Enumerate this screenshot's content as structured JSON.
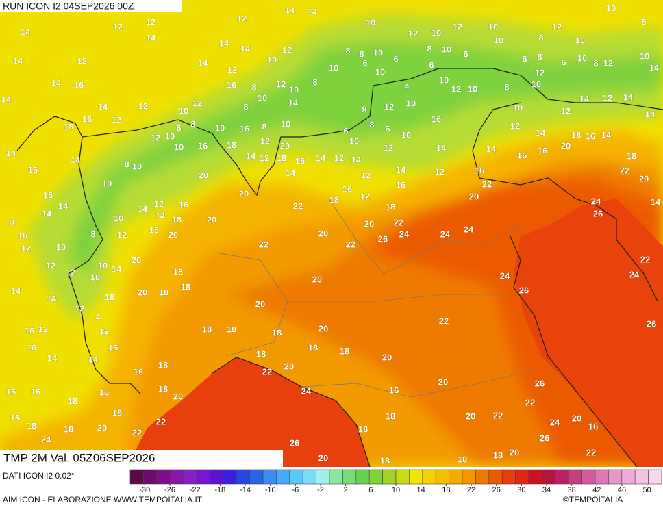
{
  "header": {
    "run": "RUN ICON I2 04SEP2026 00Z",
    "valid": "TMP 2M Val. 05Z06SEP2026"
  },
  "footer": {
    "source": "DATI ICON I2 0.02°",
    "credit": "AIM ICON - ELABORAZIONE WWW.TEMPOITALIA.IT",
    "copyright": "©TEMPOITALIA"
  },
  "colorbar": {
    "colors": [
      "#5a0a4a",
      "#6e0a6e",
      "#820a8c",
      "#8c14aa",
      "#8c1ec8",
      "#7814d2",
      "#5a14d2",
      "#3c1edc",
      "#2846e6",
      "#2864e6",
      "#3c8cf0",
      "#46aaf5",
      "#5ac8f5",
      "#78dcf5",
      "#a0f0f0",
      "#8ce6a0",
      "#78dc78",
      "#64d250",
      "#82d232",
      "#a0d228",
      "#c8dc14",
      "#f0e600",
      "#f5d200",
      "#f5be00",
      "#f5aa00",
      "#f59600",
      "#f07800",
      "#ec5a00",
      "#e83c0a",
      "#dc2814",
      "#c8141e",
      "#b4143c",
      "#be1e64",
      "#c83c82",
      "#d25aa0",
      "#dc78b4",
      "#e696c8",
      "#f0aad7",
      "#f5c3e6",
      "#f8d7f0"
    ],
    "ticks": [
      -30,
      -26,
      -22,
      -18,
      -14,
      -10,
      -6,
      -2,
      2,
      6,
      10,
      14,
      18,
      22,
      26,
      30,
      34,
      38,
      42,
      46,
      50
    ]
  },
  "labels": [
    14,
    14,
    10,
    10,
    8,
    12,
    12,
    14,
    12,
    14,
    12,
    10,
    12,
    10,
    12,
    8,
    10,
    14,
    14,
    12,
    8,
    8,
    10,
    6,
    8,
    10,
    6,
    10,
    14,
    12,
    14,
    12,
    10,
    10,
    6,
    6,
    6,
    8,
    6,
    10,
    8,
    12,
    10,
    12,
    14,
    14,
    16,
    16,
    8,
    12,
    10,
    8,
    10,
    4,
    10,
    12,
    10,
    8,
    10,
    14,
    14,
    12,
    10,
    12,
    8,
    10,
    14,
    8,
    12,
    10,
    10,
    12,
    14,
    12,
    14,
    14,
    12,
    16,
    18,
    6,
    8,
    10,
    16,
    8,
    10,
    6,
    8,
    6,
    16,
    12,
    14,
    18,
    16,
    14,
    10,
    12,
    10,
    10,
    16,
    18,
    12,
    20,
    12,
    10,
    14,
    14,
    16,
    20,
    18,
    14,
    14,
    8,
    10,
    14,
    12,
    18,
    16,
    14,
    12,
    14,
    12,
    14,
    12,
    16,
    16,
    20,
    16,
    22,
    20,
    14,
    16,
    16,
    22,
    10,
    16,
    20,
    18,
    12,
    20,
    24,
    14,
    14,
    12,
    16,
    22,
    18,
    26,
    18,
    14,
    10,
    14,
    14,
    18,
    20,
    16,
    22,
    24,
    20,
    16,
    8,
    12,
    20,
    20,
    24,
    24,
    26,
    12,
    10,
    22,
    22,
    10,
    14,
    20,
    18,
    12,
    12,
    18,
    22,
    24,
    20,
    24,
    14,
    14,
    18,
    20,
    18,
    18,
    26,
    20,
    12,
    4,
    22,
    16,
    12,
    12,
    18,
    18,
    18,
    20,
    26,
    16,
    14,
    16,
    14,
    18,
    18,
    18,
    20,
    16,
    18,
    22,
    20,
    16,
    16,
    16,
    18,
    20,
    24,
    16,
    20,
    26,
    18,
    18,
    22,
    18,
    18,
    18,
    20,
    22,
    18,
    20,
    22,
    20,
    24,
    16,
    24,
    22,
    18,
    26,
    26,
    20,
    18,
    18,
    18,
    20,
    22
  ]
}
